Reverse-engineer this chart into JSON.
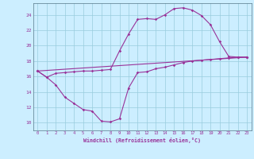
{
  "xlabel": "Windchill (Refroidissement éolien,°C)",
  "bg_color": "#cceeff",
  "grid_color": "#99ccdd",
  "line_color": "#993399",
  "xlim": [
    -0.5,
    23.5
  ],
  "ylim": [
    9.0,
    25.5
  ],
  "xticks": [
    0,
    1,
    2,
    3,
    4,
    5,
    6,
    7,
    8,
    9,
    10,
    11,
    12,
    13,
    14,
    15,
    16,
    17,
    18,
    19,
    20,
    21,
    22,
    23
  ],
  "yticks": [
    10,
    12,
    14,
    16,
    18,
    20,
    22,
    24
  ],
  "curve1_x": [
    0,
    1,
    2,
    3,
    4,
    5,
    6,
    7,
    8,
    9,
    10,
    11,
    12,
    13,
    14,
    15,
    16,
    17,
    18,
    19,
    20,
    21,
    22,
    23
  ],
  "curve1_y": [
    16.7,
    15.9,
    14.9,
    13.3,
    12.5,
    11.7,
    11.5,
    10.2,
    10.1,
    10.5,
    14.5,
    16.5,
    16.6,
    17.0,
    17.2,
    17.5,
    17.8,
    18.0,
    18.1,
    18.2,
    18.3,
    18.4,
    18.5,
    18.5
  ],
  "curve2_x": [
    0,
    1,
    2,
    3,
    4,
    5,
    6,
    7,
    8,
    9,
    10,
    11,
    12,
    13,
    14,
    15,
    16,
    17,
    18,
    19,
    20,
    21,
    22,
    23
  ],
  "curve2_y": [
    16.7,
    15.9,
    16.4,
    16.5,
    16.6,
    16.7,
    16.7,
    16.8,
    16.9,
    19.3,
    21.5,
    23.4,
    23.5,
    23.4,
    24.0,
    24.8,
    24.9,
    24.6,
    23.9,
    22.7,
    20.5,
    18.6,
    18.5,
    18.5
  ],
  "curve3_x": [
    0,
    23
  ],
  "curve3_y": [
    16.7,
    18.5
  ]
}
